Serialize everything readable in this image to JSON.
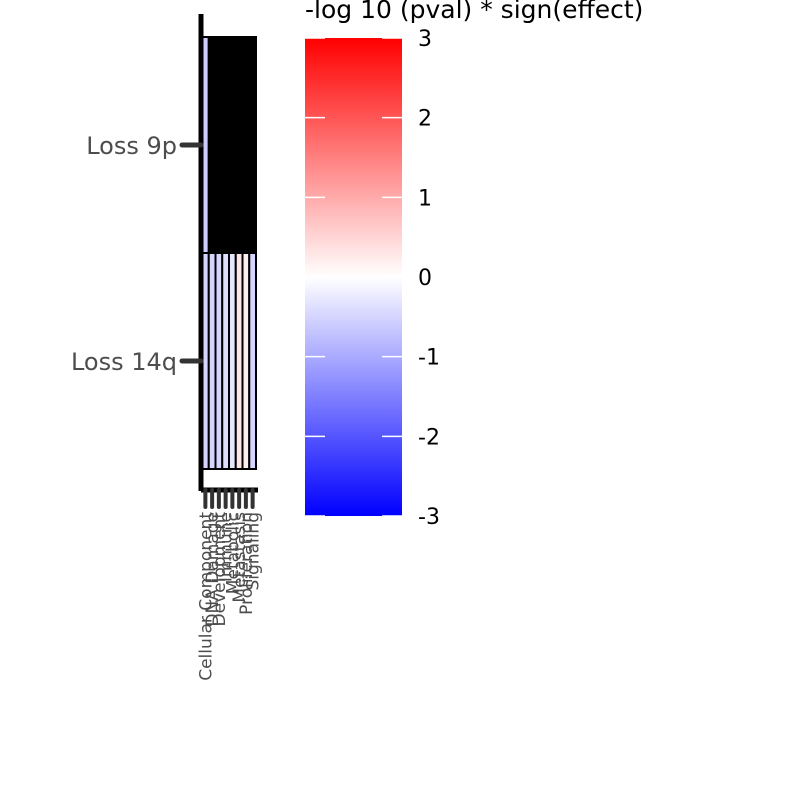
{
  "colors": {
    "high": "#ff0000",
    "mid": "#ffffff",
    "low": "#0000ff",
    "missing": "#000000",
    "tile_border": "#000000",
    "axis": "#000000",
    "tick": "#333333",
    "tick_label": "#4d4d4d"
  },
  "chart_data": {
    "type": "heatmap",
    "title": "",
    "xlabel": "",
    "ylabel": "",
    "y_categories": [
      "Loss 9p",
      "Loss 14q"
    ],
    "x_categories": [
      "Cellular Component",
      "DNA Damage",
      "Development",
      "Immune",
      "Metabolic",
      "Metastasis",
      "Proliferation",
      "Signaling"
    ],
    "values": [
      [
        -0.6,
        null,
        null,
        null,
        null,
        null,
        null,
        null
      ],
      [
        -0.5,
        -0.5,
        -0.5,
        -0.4,
        -0.3,
        0.3,
        0.2,
        -0.5
      ]
    ],
    "legend": {
      "title": "-log 10 (pval) * sign(effect)",
      "placement": "right",
      "min": -3,
      "max": 3,
      "ticks": [
        "3",
        "2",
        "1",
        "0",
        "-1",
        "-2",
        "-3"
      ]
    }
  }
}
